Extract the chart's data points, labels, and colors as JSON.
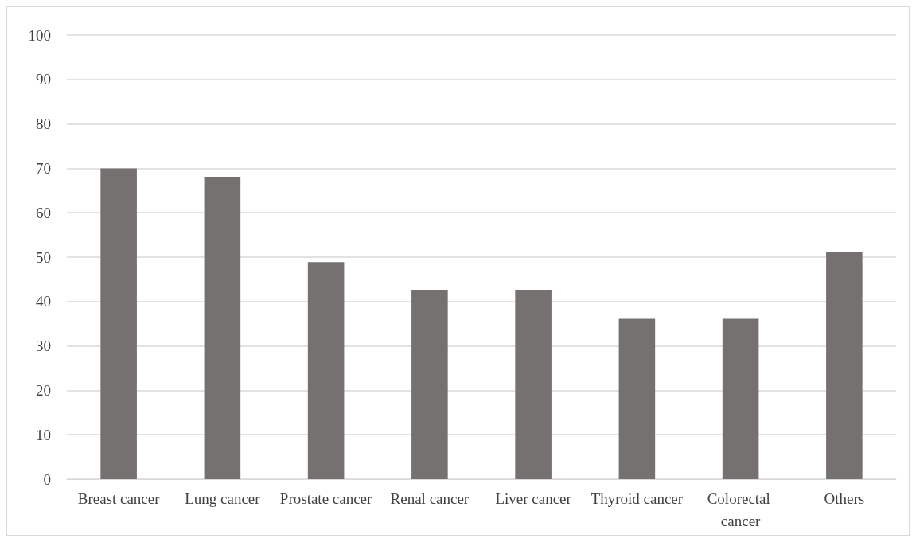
{
  "chart_data": {
    "type": "bar",
    "categories": [
      "Breast cancer",
      "Lung cancer",
      "Prostate cancer",
      "Renal cancer",
      "Liver cancer",
      "Thyroid cancer",
      "Colorectal cancer",
      "Others"
    ],
    "values": [
      70,
      68,
      48.9,
      42.5,
      42.5,
      36.1,
      36.1,
      51.1
    ],
    "color": "#757171",
    "ylim": [
      0,
      100
    ],
    "yticks": [
      0,
      10,
      20,
      30,
      40,
      50,
      60,
      70,
      80,
      90,
      100
    ],
    "grid": "y"
  }
}
